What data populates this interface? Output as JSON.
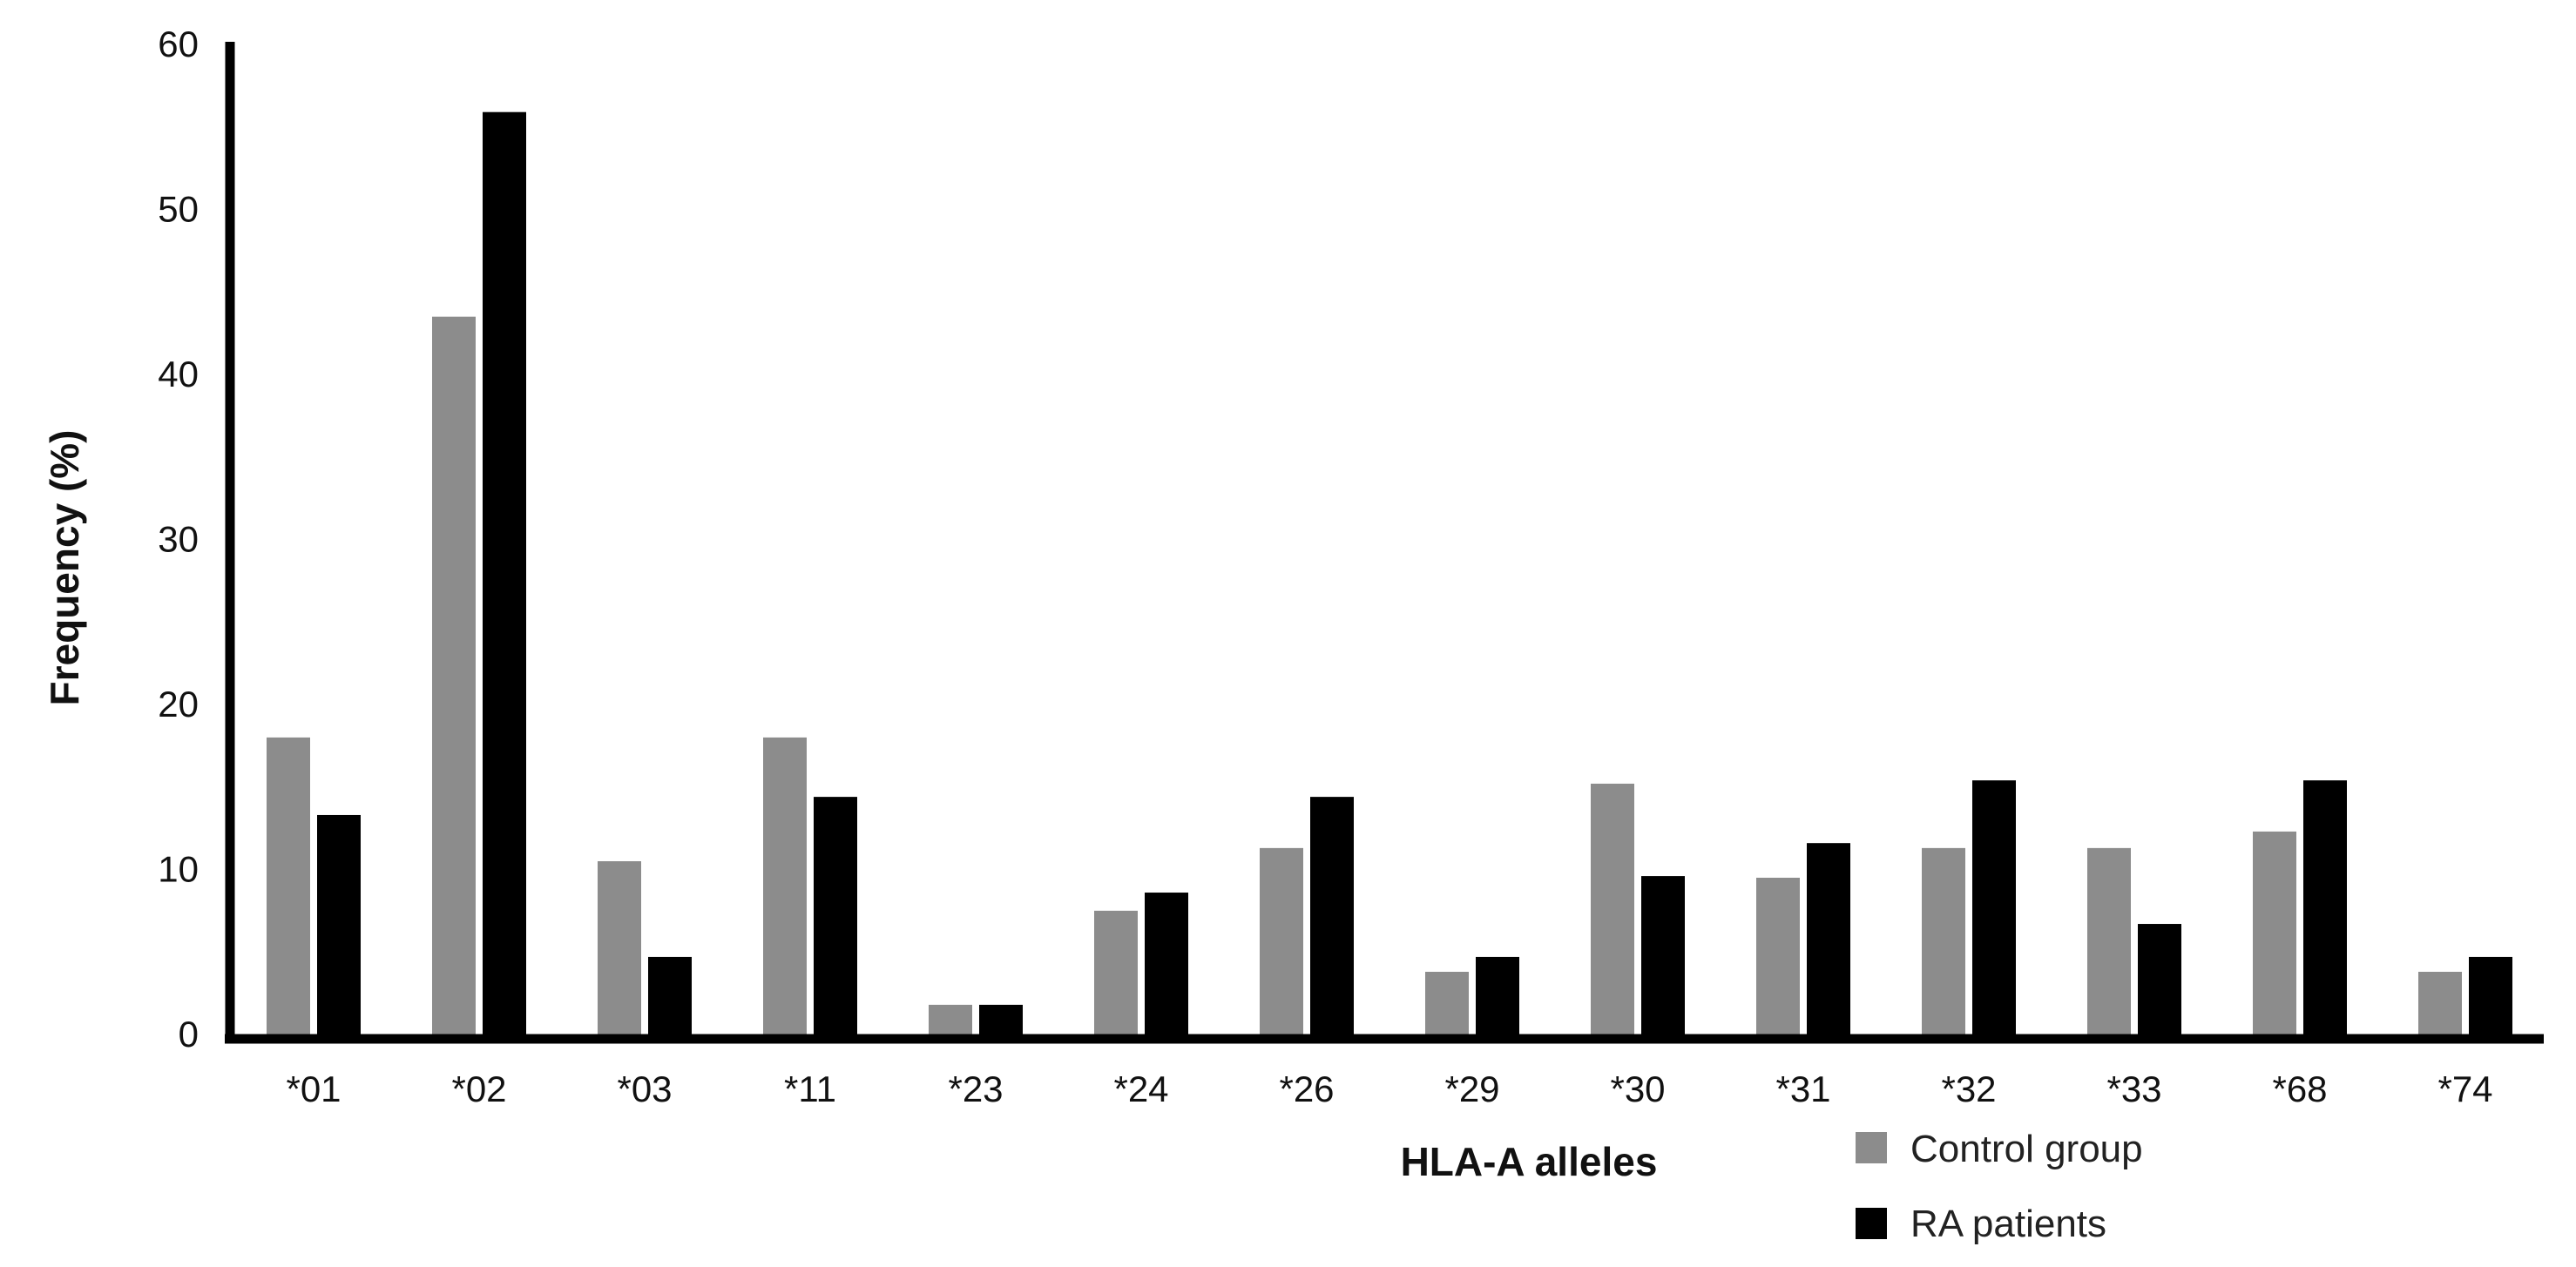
{
  "chart_data": {
    "type": "bar",
    "xlabel": "HLA-A alleles",
    "ylabel": "Frequency (%)",
    "ylim": [
      0,
      60
    ],
    "yticks": [
      0,
      10,
      20,
      30,
      40,
      50,
      60
    ],
    "categories": [
      "*01",
      "*02",
      "*03",
      "*11",
      "*23",
      "*24",
      "*26",
      "*29",
      "*30",
      "*31",
      "*32",
      "*33",
      "*68",
      "*74"
    ],
    "series": [
      {
        "name": "Control group",
        "color": "#8c8c8c",
        "values": [
          18,
          43.5,
          10.5,
          18,
          1.8,
          7.5,
          11.3,
          3.8,
          15.2,
          9.5,
          11.3,
          11.3,
          12.3,
          3.8
        ]
      },
      {
        "name": "RA patients",
        "color": "#000000",
        "values": [
          13.3,
          55.9,
          4.7,
          14.4,
          1.8,
          8.6,
          14.4,
          4.7,
          9.6,
          11.6,
          15.4,
          6.7,
          15.4,
          4.7
        ]
      }
    ],
    "grid": false,
    "legend": "bottom-right"
  }
}
